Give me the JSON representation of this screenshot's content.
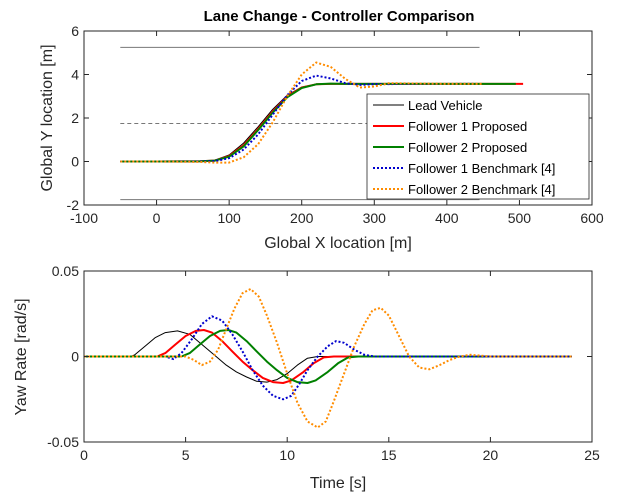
{
  "chart_data": [
    {
      "type": "line",
      "title": "Lane Change - Controller Comparison",
      "xlabel": "Global X location [m]",
      "ylabel": "Global Y location [m]",
      "xlim": [
        -100,
        600
      ],
      "ylim": [
        -2,
        6
      ],
      "xticks": [
        "-100",
        "0",
        "100",
        "200",
        "300",
        "400",
        "500",
        "600"
      ],
      "yticks": [
        "-2",
        "0",
        "2",
        "4",
        "6"
      ],
      "grid": false,
      "legend_position": "lower-right",
      "lane_lines": [
        {
          "style": "solid",
          "x": [
            -50,
            445
          ],
          "y": [
            5.25,
            5.25
          ]
        },
        {
          "style": "dashed",
          "x": [
            -50,
            445
          ],
          "y": [
            1.75,
            1.75
          ]
        },
        {
          "style": "solid",
          "x": [
            -50,
            445
          ],
          "y": [
            -1.75,
            -1.75
          ]
        }
      ],
      "series": [
        {
          "name": "Lead Vehicle",
          "color": "#000000",
          "style": "solid",
          "x": [
            -50,
            0,
            60,
            80,
            100,
            120,
            140,
            160,
            180,
            200,
            220,
            240,
            260,
            300,
            445
          ],
          "y": [
            0,
            0,
            0.01,
            0.06,
            0.3,
            0.85,
            1.6,
            2.4,
            3.05,
            3.42,
            3.55,
            3.57,
            3.57,
            3.57,
            3.57
          ]
        },
        {
          "name": "Follower 1 Proposed",
          "color": "#ff0000",
          "style": "solid",
          "x": [
            -50,
            0,
            60,
            80,
            100,
            120,
            140,
            160,
            180,
            200,
            220,
            240,
            260,
            300,
            505
          ],
          "y": [
            0,
            0,
            0.01,
            0.04,
            0.25,
            0.75,
            1.5,
            2.3,
            3.0,
            3.4,
            3.55,
            3.57,
            3.57,
            3.57,
            3.57
          ]
        },
        {
          "name": "Follower 2 Proposed",
          "color": "#008000",
          "style": "solid",
          "x": [
            -50,
            0,
            60,
            80,
            100,
            120,
            140,
            160,
            180,
            200,
            220,
            240,
            260,
            300,
            495
          ],
          "y": [
            0,
            0,
            0.01,
            0.04,
            0.22,
            0.7,
            1.45,
            2.25,
            2.95,
            3.38,
            3.55,
            3.58,
            3.57,
            3.57,
            3.57
          ]
        },
        {
          "name": "Follower 1 Benchmark [4]",
          "color": "#0000cd",
          "style": "dotted",
          "x": [
            -50,
            0,
            60,
            80,
            100,
            120,
            140,
            160,
            180,
            200,
            220,
            240,
            260,
            280,
            300,
            440
          ],
          "y": [
            0,
            0,
            0.0,
            0.02,
            0.15,
            0.55,
            1.25,
            2.15,
            3.05,
            3.7,
            3.95,
            3.82,
            3.6,
            3.52,
            3.56,
            3.57
          ]
        },
        {
          "name": "Follower 2 Benchmark [4]",
          "color": "#ff8c00",
          "style": "dotted",
          "x": [
            -50,
            0,
            60,
            80,
            100,
            120,
            140,
            160,
            180,
            200,
            220,
            240,
            260,
            280,
            300,
            320,
            400,
            450
          ],
          "y": [
            0,
            0,
            -0.02,
            -0.05,
            -0.05,
            0.2,
            0.8,
            1.8,
            3.0,
            4.0,
            4.55,
            4.35,
            3.8,
            3.4,
            3.45,
            3.6,
            3.57,
            3.57
          ]
        }
      ]
    },
    {
      "type": "line",
      "title": "",
      "xlabel": "Time [s]",
      "ylabel": "Yaw Rate [rad/s]",
      "xlim": [
        0,
        25
      ],
      "ylim": [
        -0.05,
        0.05
      ],
      "xticks": [
        "0",
        "5",
        "10",
        "15",
        "20",
        "25"
      ],
      "yticks": [
        "-0.05",
        "0",
        "0.05"
      ],
      "grid": false,
      "series": [
        {
          "name": "Lead Vehicle",
          "color": "#000000",
          "style": "solid",
          "x": [
            0,
            2.3,
            2.5,
            3.0,
            3.5,
            4.0,
            4.6,
            5.2,
            5.8,
            6.5,
            7.0,
            7.5,
            8.0,
            8.5,
            9.0,
            9.5,
            10.0,
            10.5,
            11.0,
            11.5,
            12.0,
            24
          ],
          "y": [
            0,
            0,
            0.001,
            0.006,
            0.011,
            0.014,
            0.015,
            0.013,
            0.007,
            0.0,
            -0.005,
            -0.009,
            -0.012,
            -0.0145,
            -0.015,
            -0.0135,
            -0.01,
            -0.005,
            -0.001,
            0,
            0,
            0
          ]
        },
        {
          "name": "Follower 1 Proposed",
          "color": "#ff0000",
          "style": "solid",
          "x": [
            0,
            3.6,
            4.0,
            4.5,
            5.0,
            5.5,
            5.9,
            6.3,
            6.8,
            7.3,
            7.8,
            8.3,
            8.8,
            9.3,
            9.8,
            10.2,
            10.8,
            11.3,
            11.8,
            12.3,
            24
          ],
          "y": [
            0,
            0,
            0.002,
            0.007,
            0.012,
            0.015,
            0.0155,
            0.014,
            0.009,
            0.003,
            -0.003,
            -0.008,
            -0.0125,
            -0.015,
            -0.0155,
            -0.014,
            -0.009,
            -0.004,
            -0.0005,
            0,
            0
          ]
        },
        {
          "name": "Follower 2 Proposed",
          "color": "#008000",
          "style": "solid",
          "x": [
            0,
            4.8,
            5.2,
            5.7,
            6.2,
            6.7,
            7.1,
            7.5,
            8.0,
            8.5,
            9.0,
            9.5,
            10.0,
            10.5,
            11.0,
            11.4,
            12.0,
            12.5,
            13.0,
            13.5,
            24
          ],
          "y": [
            0,
            0,
            0.002,
            0.007,
            0.012,
            0.015,
            0.0155,
            0.014,
            0.009,
            0.003,
            -0.003,
            -0.008,
            -0.0125,
            -0.015,
            -0.0155,
            -0.014,
            -0.009,
            -0.004,
            -0.0005,
            0,
            0
          ]
        },
        {
          "name": "Follower 1 Benchmark [4]",
          "color": "#0000cd",
          "style": "dotted",
          "x": [
            0,
            4.0,
            4.4,
            4.8,
            5.3,
            5.8,
            6.3,
            6.8,
            7.3,
            7.8,
            8.3,
            8.8,
            9.3,
            9.8,
            10.2,
            10.6,
            11.0,
            11.5,
            12.0,
            12.4,
            12.8,
            13.3,
            13.8,
            14.3,
            14.8,
            24
          ],
          "y": [
            0,
            0,
            -0.0015,
            0.002,
            0.01,
            0.019,
            0.0235,
            0.021,
            0.013,
            0.003,
            -0.008,
            -0.017,
            -0.023,
            -0.025,
            -0.023,
            -0.016,
            -0.008,
            0.0,
            0.006,
            0.009,
            0.008,
            0.004,
            0.001,
            0.0,
            0,
            0
          ]
        },
        {
          "name": "Follower 2 Benchmark [4]",
          "color": "#ff8c00",
          "style": "dotted",
          "x": [
            0,
            5.0,
            5.4,
            5.8,
            6.2,
            6.6,
            7.0,
            7.4,
            7.8,
            8.2,
            8.6,
            9.0,
            9.5,
            10.0,
            10.5,
            11.0,
            11.5,
            11.9,
            12.3,
            12.8,
            13.3,
            13.8,
            14.2,
            14.6,
            15.0,
            15.5,
            16.0,
            16.5,
            17.0,
            17.5,
            18.0,
            18.5,
            19.0,
            19.5,
            20.0,
            24
          ],
          "y": [
            0,
            0,
            -0.002,
            -0.005,
            -0.003,
            0.004,
            0.016,
            0.028,
            0.037,
            0.0395,
            0.035,
            0.024,
            0.008,
            -0.01,
            -0.027,
            -0.038,
            -0.0415,
            -0.038,
            -0.026,
            -0.01,
            0.006,
            0.019,
            0.027,
            0.0285,
            0.024,
            0.012,
            0.0,
            -0.0065,
            -0.0075,
            -0.005,
            -0.002,
            0.0,
            0.001,
            0.0005,
            0,
            0
          ]
        }
      ]
    }
  ]
}
